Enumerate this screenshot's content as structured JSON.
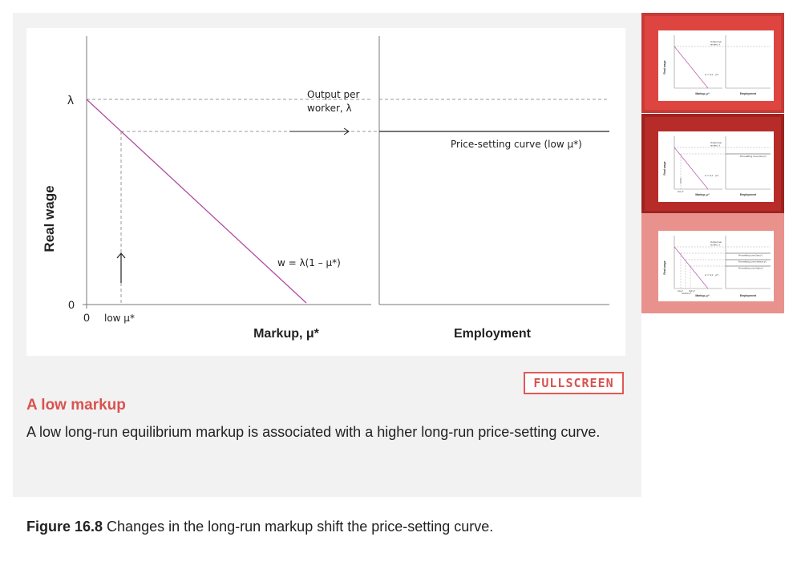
{
  "figure": {
    "y_axis_label": "Real wage",
    "lambda_label": "λ",
    "zero_y": "0",
    "zero_x": "0",
    "low_mu_label": "low μ*",
    "output_label_line1": "Output per",
    "output_label_line2": "worker, λ",
    "wage_equation": "w = λ(1 – μ*)",
    "price_setting_label": "Price-setting curve (low μ*)",
    "x_axis_left": "Markup, μ*",
    "x_axis_right": "Employment"
  },
  "fullscreen_label": "FULLSCREEN",
  "step": {
    "title": "A low markup",
    "description": "A low long-run equilibrium markup is associated with a higher long-run price-setting curve."
  },
  "caption": {
    "number": "Figure 16.8",
    "text": " Changes in the long-run markup shift the price-setting curve."
  },
  "thumbnails": {
    "t1": {
      "ylabel": "Real wage",
      "output1": "Output per",
      "output2": "worker, λ",
      "eq": "w = λ(1 – μ*)",
      "xl": "Markup, μ*",
      "xr": "Employment"
    },
    "t2": {
      "ylabel": "Real wage",
      "output1": "Output per",
      "output2": "worker, λ",
      "psc": "Price-setting curve (low μ*)",
      "eq": "w = λ(1 – μ*)",
      "xl": "Markup, μ*",
      "xr": "Employment",
      "low": "low μ*"
    },
    "t3": {
      "ylabel": "Real wage",
      "output1": "Output per",
      "output2": "worker, λ",
      "psc1": "Price-setting curve (low μ*)",
      "psc2": "Price-setting curve (medium μ*)",
      "psc3": "Price-setting curve (high μ*)",
      "eq": "w = λ(1 – μ*)",
      "xl": "Markup, μ*",
      "xr": "Employment",
      "low": "low μ*",
      "high": "high μ*",
      "medium": "medium μ*"
    }
  },
  "colors": {
    "accent": "#d9534f",
    "wage_line": "#b04aa0",
    "thumb_active": "#de4540",
    "thumb_dark": "#b72c28",
    "thumb_light": "#e9918d"
  }
}
